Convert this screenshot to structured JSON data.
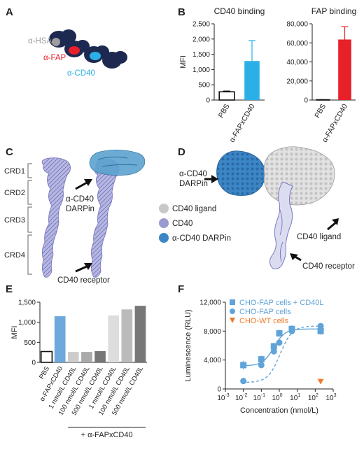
{
  "panel_labels": {
    "a": "A",
    "b": "B",
    "c": "C",
    "d": "D",
    "e": "E",
    "f": "F"
  },
  "colors": {
    "dark_navy": "#1d2951",
    "red": "#e8202a",
    "cyan": "#2ab0e6",
    "gray": "#9e9e9e",
    "lavender": "#9a9ad0",
    "blue": "#3c86c6",
    "orange": "#f07b2a",
    "light_blue": "#5fa3d8"
  },
  "panel_a": {
    "hsa": "α-HSA",
    "fap": "α-FAP",
    "cd40": "α-CD40"
  },
  "panel_c": {
    "crds": [
      "CRD1",
      "CRD2",
      "CRD3",
      "CRD4"
    ],
    "darpin": "α-CD40\nDARPin",
    "receptor": "CD40 receptor"
  },
  "panel_d": {
    "darpin": "α-CD40\nDARPin",
    "ligand": "CD40 ligand",
    "receptor": "CD40 receptor"
  },
  "legend_cd": [
    {
      "label": "CD40 ligand",
      "color": "#c8c8c8"
    },
    {
      "label": "CD40",
      "color": "#9a9ad0"
    },
    {
      "label": "α-CD40 DARPin",
      "color": "#3c86c6"
    }
  ],
  "chart_data": [
    {
      "id": "B-left",
      "type": "bar",
      "title": "CD40 binding",
      "ylabel": "MFI",
      "categories": [
        "PBS",
        "α-FAPxCD40"
      ],
      "values": [
        270,
        1280
      ],
      "errors": [
        25,
        670
      ],
      "ylim": [
        0,
        2500
      ],
      "yticks": [
        "0",
        "500",
        "1,000",
        "1,500",
        "2,000",
        "2,500"
      ],
      "fills": [
        "#ffffff",
        "#2ab0e6"
      ]
    },
    {
      "id": "B-right",
      "type": "bar",
      "title": "FAP binding",
      "ylabel": "",
      "categories": [
        "PBS",
        "α-FAPxCD40"
      ],
      "values": [
        300,
        63500
      ],
      "errors": [
        100,
        13500
      ],
      "ylim": [
        0,
        80000
      ],
      "yticks": [
        "0",
        "20,000",
        "40,000",
        "60,000",
        "80,000"
      ],
      "fills": [
        "#ffffff",
        "#e8202a"
      ]
    },
    {
      "id": "E",
      "type": "bar",
      "title": "",
      "ylabel": "MFI",
      "categories": [
        "PBS",
        "α-FAPxCD40",
        "1 nmol/L CD40L",
        "100 nmol/L CD40L",
        "500 nmol/L CD40L",
        "1 nmol/L CD40L",
        "100 nmol/L CD40L",
        "500 nmol/L CD40L"
      ],
      "values": [
        270,
        1150,
        260,
        260,
        280,
        1170,
        1320,
        1410
      ],
      "ylim": [
        0,
        1500
      ],
      "yticks": [
        "0",
        "500",
        "1,000",
        "1,500"
      ],
      "fills": [
        "#ffffff",
        "#6fa8dc",
        "#cccccc",
        "#aaaaaa",
        "#777777",
        "#dddddd",
        "#bbbbbb",
        "#777777"
      ],
      "bracket_label": "+ α-FAPxCD40"
    },
    {
      "id": "F",
      "type": "scatter",
      "xscale": "log",
      "xlabel": "Concentration (nmol/L)",
      "ylabel": "Luminescence (RLU)",
      "xlim": [
        0.001,
        1000
      ],
      "ylim": [
        0,
        12000
      ],
      "xticks": [
        "10",
        "10",
        "10",
        "10",
        "10",
        "10",
        "10"
      ],
      "xtick_exps": [
        "-3",
        "-2",
        "-1",
        "0",
        "1",
        "2",
        "3"
      ],
      "yticks": [
        "0",
        "4,000",
        "8,000",
        "12,000"
      ],
      "series": [
        {
          "name": "CHO-FAP cells + CD40L",
          "marker": "square",
          "color": "#5fa3d8",
          "x": [
            0.01,
            0.1,
            0.5,
            1,
            5,
            200
          ],
          "y": [
            3300,
            4100,
            5900,
            7700,
            8300,
            8000
          ],
          "err": [
            600,
            500,
            500,
            500,
            500,
            500
          ]
        },
        {
          "name": "CHO-FAP cells",
          "marker": "circle",
          "color": "#5fa3d8",
          "x": [
            0.01,
            0.1,
            0.5,
            1,
            5,
            200
          ],
          "y": [
            1100,
            3300,
            5200,
            6400,
            8000,
            8700
          ],
          "err": [
            0,
            0,
            0,
            0,
            0,
            0
          ]
        },
        {
          "name": "CHO-WT cells",
          "marker": "triangle",
          "color": "#f07b2a",
          "x": [
            200
          ],
          "y": [
            1000
          ],
          "err": [
            0
          ]
        }
      ]
    }
  ]
}
